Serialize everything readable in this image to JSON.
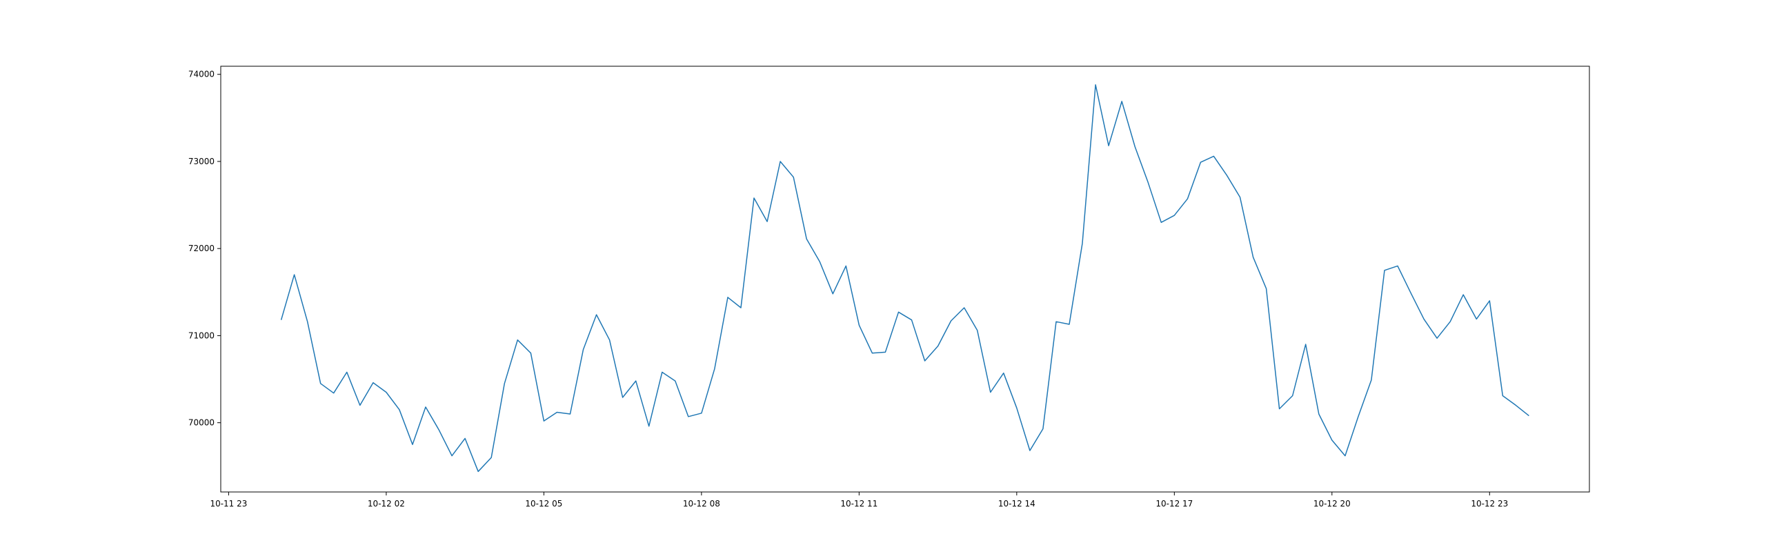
{
  "chart_data": {
    "type": "line",
    "title": "",
    "xlabel": "",
    "ylabel": "",
    "grid": false,
    "x_ticks": [
      {
        "label": "10-11 23",
        "hours": 0
      },
      {
        "label": "10-12 02",
        "hours": 3
      },
      {
        "label": "10-12 05",
        "hours": 6
      },
      {
        "label": "10-12 08",
        "hours": 9
      },
      {
        "label": "10-12 11",
        "hours": 12
      },
      {
        "label": "10-12 14",
        "hours": 15
      },
      {
        "label": "10-12 17",
        "hours": 18
      },
      {
        "label": "10-12 20",
        "hours": 21
      },
      {
        "label": "10-12 23",
        "hours": 24
      }
    ],
    "y_ticks": [
      70000,
      71000,
      72000,
      73000,
      74000
    ],
    "xlim_hours": [
      -0.15,
      25.9
    ],
    "ylim": [
      69205,
      74093
    ],
    "x_start_hours": 1.0,
    "x_step_hours": 0.25,
    "series": [
      {
        "color": "#1f77b4",
        "values": [
          71180,
          71700,
          71160,
          70450,
          70340,
          70580,
          70200,
          70460,
          70350,
          70150,
          69750,
          70180,
          69920,
          69620,
          69820,
          69440,
          69600,
          70450,
          70950,
          70800,
          70020,
          70120,
          70100,
          70840,
          71240,
          70950,
          70290,
          70480,
          69960,
          70580,
          70480,
          70070,
          70110,
          70620,
          71440,
          71320,
          72580,
          72310,
          73000,
          72820,
          72110,
          71850,
          71480,
          71800,
          71120,
          70800,
          70810,
          71270,
          71180,
          70710,
          70880,
          71170,
          71320,
          71060,
          70350,
          70570,
          70170,
          69680,
          69930,
          71160,
          71130,
          72060,
          73880,
          73180,
          73690,
          73170,
          72760,
          72300,
          72380,
          72570,
          72990,
          73060,
          72840,
          72590,
          71900,
          71540,
          70160,
          70310,
          70900,
          70100,
          69800,
          69620,
          70070,
          70490,
          71750,
          71800,
          71490,
          71190,
          70970,
          71160,
          71470,
          71190,
          71400,
          70310,
          70200,
          70080
        ]
      }
    ]
  }
}
